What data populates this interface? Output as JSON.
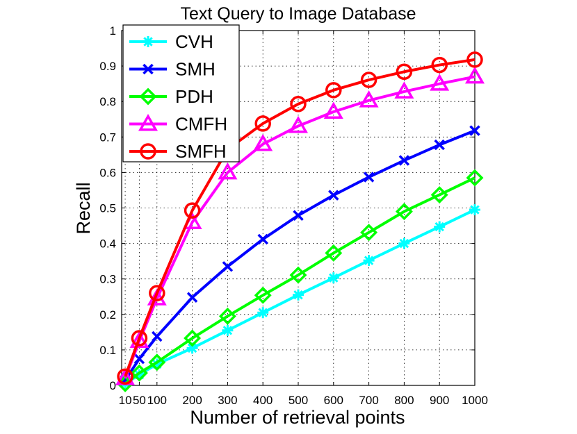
{
  "chart_data": {
    "type": "line",
    "title": "Text Query to Image Database",
    "xlabel": "Number of retrieval points",
    "ylabel": "Recall",
    "xlim": [
      0,
      1000
    ],
    "ylim": [
      0,
      1
    ],
    "x": [
      10,
      50,
      100,
      200,
      300,
      400,
      500,
      600,
      700,
      800,
      900,
      1000
    ],
    "x_tick_labels": [
      "10",
      "50",
      "100",
      "200",
      "300",
      "400",
      "500",
      "600",
      "700",
      "800",
      "900",
      "1000"
    ],
    "y_ticks": [
      0,
      0.1,
      0.2,
      0.3,
      0.4,
      0.5,
      0.6,
      0.7,
      0.8,
      0.9,
      1
    ],
    "y_tick_labels": [
      "0",
      "0.1",
      "0.2",
      "0.3",
      "0.4",
      "0.5",
      "0.6",
      "0.7",
      "0.8",
      "0.9",
      "1"
    ],
    "grid": true,
    "legend_position": "top-left",
    "series": [
      {
        "name": "CVH",
        "color": "#00ffff",
        "marker": "asterisk",
        "values": [
          0.005,
          0.03,
          0.06,
          0.105,
          0.155,
          0.205,
          0.255,
          0.303,
          0.352,
          0.4,
          0.447,
          0.495
        ]
      },
      {
        "name": "SMH",
        "color": "#0000ff",
        "marker": "x",
        "values": [
          0.015,
          0.075,
          0.138,
          0.248,
          0.335,
          0.412,
          0.479,
          0.536,
          0.587,
          0.634,
          0.678,
          0.718
        ]
      },
      {
        "name": "PDH",
        "color": "#00ff00",
        "marker": "diamond",
        "values": [
          0.005,
          0.035,
          0.065,
          0.133,
          0.195,
          0.254,
          0.311,
          0.373,
          0.431,
          0.49,
          0.537,
          0.585
        ]
      },
      {
        "name": "CMFH",
        "color": "#ff00ff",
        "marker": "triangle",
        "values": [
          0.02,
          0.125,
          0.245,
          0.46,
          0.6,
          0.68,
          0.731,
          0.771,
          0.803,
          0.828,
          0.85,
          0.87
        ]
      },
      {
        "name": "SMFH",
        "color": "#ff0000",
        "marker": "circle",
        "values": [
          0.025,
          0.133,
          0.26,
          0.493,
          0.665,
          0.738,
          0.793,
          0.832,
          0.861,
          0.884,
          0.903,
          0.918
        ]
      }
    ]
  }
}
